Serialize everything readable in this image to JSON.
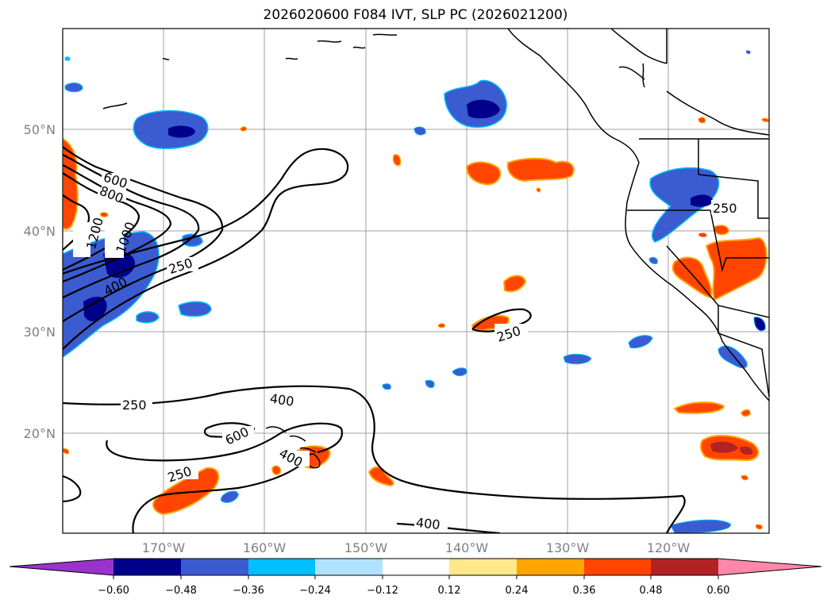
{
  "title": "2026020600 F084 IVT, SLP PC (2026021200)",
  "map": {
    "lat_labels": [
      "50°N",
      "40°N",
      "30°N",
      "20°N"
    ],
    "lon_labels": [
      "170°W",
      "160°W",
      "150°W",
      "140°W",
      "130°W",
      "120°W"
    ],
    "contour_labels": [
      "600",
      "800",
      "1000",
      "1200",
      "400",
      "250",
      "250",
      "250",
      "250",
      "400",
      "600",
      "400",
      "250",
      "400"
    ],
    "gridline_color": "#a0a0a0"
  },
  "colorbar": {
    "ticks": [
      "−0.60",
      "−0.48",
      "−0.36",
      "−0.24",
      "−0.12",
      "0.12",
      "0.24",
      "0.36",
      "0.48",
      "0.60"
    ],
    "colors": [
      "#9933cc",
      "#00008b",
      "#3b5bd0",
      "#00bfff",
      "#b0e2ff",
      "#ffffff",
      "#ffe88a",
      "#ffa500",
      "#ff4500",
      "#b22222",
      "#ff88aa"
    ]
  }
}
